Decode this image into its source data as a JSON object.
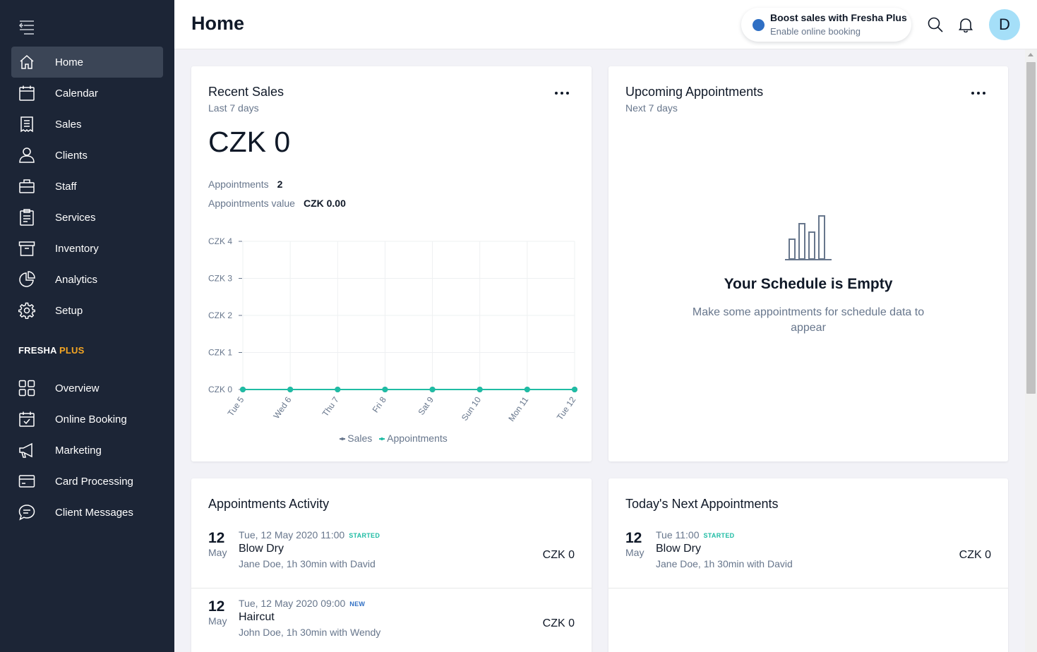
{
  "header": {
    "title": "Home",
    "promo": {
      "title": "Boost sales with Fresha Plus",
      "subtitle": "Enable online booking",
      "dot_color": "#2f6fc4"
    },
    "avatar_initial": "D"
  },
  "sidebar": {
    "items": [
      {
        "label": "Home",
        "icon": "home-icon",
        "active": true
      },
      {
        "label": "Calendar",
        "icon": "calendar-icon"
      },
      {
        "label": "Sales",
        "icon": "receipt-icon"
      },
      {
        "label": "Clients",
        "icon": "user-icon"
      },
      {
        "label": "Staff",
        "icon": "briefcase-icon"
      },
      {
        "label": "Services",
        "icon": "clipboard-icon"
      },
      {
        "label": "Inventory",
        "icon": "box-icon"
      },
      {
        "label": "Analytics",
        "icon": "pie-chart-icon"
      },
      {
        "label": "Setup",
        "icon": "gear-icon"
      }
    ],
    "plus_brand": "FRESHA",
    "plus_word": "PLUS",
    "plus_items": [
      {
        "label": "Overview",
        "icon": "grid-icon"
      },
      {
        "label": "Online Booking",
        "icon": "calendar-check-icon"
      },
      {
        "label": "Marketing",
        "icon": "megaphone-icon"
      },
      {
        "label": "Card Processing",
        "icon": "card-icon"
      },
      {
        "label": "Client Messages",
        "icon": "chat-icon"
      }
    ]
  },
  "recent_sales": {
    "title": "Recent Sales",
    "subtitle": "Last 7 days",
    "amount": "CZK 0",
    "appointments_label": "Appointments",
    "appointments_value": "2",
    "appointments_value_label": "Appointments value",
    "appointments_value_amount": "CZK 0.00",
    "legend_sales": "Sales",
    "legend_appointments": "Appointments"
  },
  "chart_data": {
    "type": "line",
    "categories": [
      "Tue 5",
      "Wed 6",
      "Thu 7",
      "Fri 8",
      "Sat 9",
      "Sun 10",
      "Mon 11",
      "Tue 12"
    ],
    "y_ticks": [
      "CZK 0",
      "CZK 1",
      "CZK 2",
      "CZK 3",
      "CZK 4"
    ],
    "ylim": [
      0,
      4
    ],
    "series": [
      {
        "name": "Sales",
        "values": [
          0,
          0,
          0,
          0,
          0,
          0,
          0,
          0
        ],
        "color": "#67768c"
      },
      {
        "name": "Appointments",
        "values": [
          0,
          0,
          0,
          0,
          0,
          0,
          0,
          0
        ],
        "color": "#1fbca4"
      }
    ],
    "grid": true,
    "legend": "bottom"
  },
  "upcoming": {
    "title": "Upcoming Appointments",
    "subtitle": "Next 7 days",
    "empty_title": "Your Schedule is Empty",
    "empty_text": "Make some appointments for schedule data to appear"
  },
  "activity": {
    "title": "Appointments Activity",
    "items": [
      {
        "day": "12",
        "month": "May",
        "when": "Tue, 12 May 2020 11:00",
        "status": "STARTED",
        "status_color": "#1fbca4",
        "service": "Blow Dry",
        "who": "Jane Doe, 1h 30min with David",
        "price": "CZK 0"
      },
      {
        "day": "12",
        "month": "May",
        "when": "Tue, 12 May 2020 09:00",
        "status": "NEW",
        "status_color": "#2f6fc4",
        "service": "Haircut",
        "who": "John Doe, 1h 30min with Wendy",
        "price": "CZK 0"
      }
    ]
  },
  "today_next": {
    "title": "Today's Next Appointments",
    "items": [
      {
        "day": "12",
        "month": "May",
        "when": "Tue 11:00",
        "status": "STARTED",
        "status_color": "#1fbca4",
        "service": "Blow Dry",
        "who": "Jane Doe, 1h 30min with David",
        "price": "CZK 0"
      }
    ]
  }
}
